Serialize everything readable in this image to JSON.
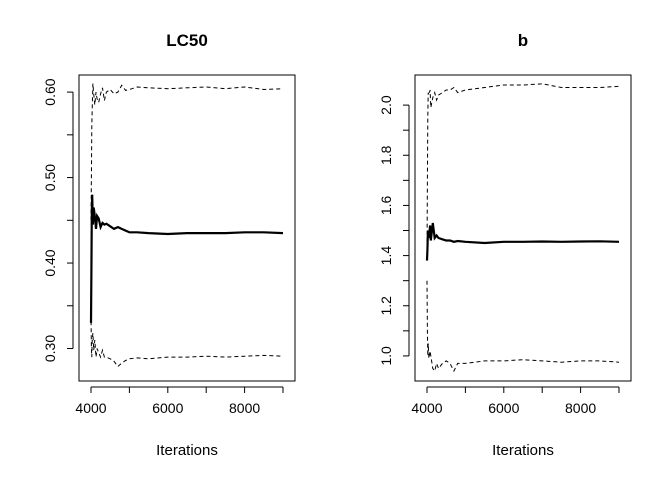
{
  "chart_data": [
    {
      "type": "line",
      "title": "LC50",
      "xlabel": "Iterations",
      "ylabel": "",
      "xlim": [
        4000,
        9000
      ],
      "ylim": [
        0.262,
        0.62
      ],
      "xticks": [
        4000,
        6000,
        8000
      ],
      "yticks": [
        0.3,
        0.4,
        0.5,
        0.6
      ],
      "ytick_labels": [
        "0.30",
        "0.40",
        "0.50",
        "0.60"
      ],
      "grid": false,
      "legend": "none",
      "series": [
        {
          "style": "dashed",
          "x": [
            4000,
            4010,
            4020,
            4030,
            4050,
            4070,
            4100,
            4130,
            4160,
            4200,
            4250,
            4300,
            4350,
            4400,
            4500,
            4600,
            4700,
            4800,
            4900,
            5000,
            5200,
            5500,
            6000,
            6500,
            7000,
            7500,
            8000,
            8500,
            9000
          ],
          "values": [
            0.45,
            0.5,
            0.56,
            0.58,
            0.61,
            0.598,
            0.585,
            0.6,
            0.592,
            0.588,
            0.598,
            0.605,
            0.59,
            0.6,
            0.603,
            0.598,
            0.6,
            0.608,
            0.602,
            0.603,
            0.606,
            0.605,
            0.604,
            0.605,
            0.606,
            0.604,
            0.606,
            0.603,
            0.604
          ]
        },
        {
          "style": "solid",
          "x": [
            4000,
            4010,
            4020,
            4030,
            4050,
            4070,
            4100,
            4130,
            4160,
            4200,
            4250,
            4300,
            4350,
            4400,
            4500,
            4600,
            4700,
            4800,
            4900,
            5000,
            5200,
            5500,
            6000,
            6500,
            7000,
            7500,
            8000,
            8500,
            9000
          ],
          "values": [
            0.33,
            0.39,
            0.46,
            0.48,
            0.445,
            0.465,
            0.455,
            0.44,
            0.455,
            0.452,
            0.442,
            0.447,
            0.445,
            0.446,
            0.443,
            0.44,
            0.442,
            0.44,
            0.438,
            0.436,
            0.436,
            0.435,
            0.434,
            0.435,
            0.435,
            0.435,
            0.436,
            0.436,
            0.435
          ]
        },
        {
          "style": "dashed",
          "x": [
            4000,
            4010,
            4020,
            4030,
            4050,
            4070,
            4100,
            4130,
            4160,
            4200,
            4250,
            4300,
            4350,
            4400,
            4500,
            4600,
            4700,
            4800,
            4900,
            5000,
            5200,
            5500,
            6000,
            6500,
            7000,
            7500,
            8000,
            8500,
            9000
          ],
          "values": [
            0.34,
            0.3,
            0.29,
            0.31,
            0.318,
            0.298,
            0.31,
            0.29,
            0.3,
            0.295,
            0.29,
            0.298,
            0.29,
            0.29,
            0.288,
            0.285,
            0.279,
            0.283,
            0.286,
            0.288,
            0.289,
            0.288,
            0.29,
            0.29,
            0.291,
            0.29,
            0.291,
            0.292,
            0.291
          ]
        }
      ]
    },
    {
      "type": "line",
      "title": "b",
      "xlabel": "Iterations",
      "ylabel": "",
      "xlim": [
        4000,
        9000
      ],
      "ylim": [
        0.9,
        2.12
      ],
      "xticks": [
        4000,
        6000,
        8000
      ],
      "yticks": [
        1.0,
        1.2,
        1.4,
        1.6,
        1.8,
        2.0
      ],
      "ytick_labels": [
        "1.0",
        "1.2",
        "1.4",
        "1.6",
        "1.8",
        "2.0"
      ],
      "grid": false,
      "legend": "none",
      "series": [
        {
          "style": "dashed",
          "x": [
            4000,
            4010,
            4020,
            4030,
            4050,
            4080,
            4100,
            4150,
            4200,
            4250,
            4300,
            4400,
            4500,
            4600,
            4700,
            4800,
            5000,
            5500,
            6000,
            6500,
            7000,
            7500,
            8000,
            8500,
            9000
          ],
          "values": [
            1.4,
            1.7,
            1.95,
            2.05,
            2.04,
            2.06,
            1.99,
            2.03,
            2.05,
            2.02,
            2.04,
            2.05,
            2.06,
            2.06,
            2.07,
            2.05,
            2.06,
            2.07,
            2.08,
            2.08,
            2.085,
            2.07,
            2.07,
            2.07,
            2.075
          ]
        },
        {
          "style": "solid",
          "x": [
            4000,
            4010,
            4020,
            4030,
            4050,
            4080,
            4100,
            4150,
            4200,
            4250,
            4300,
            4400,
            4500,
            4600,
            4700,
            4800,
            5000,
            5500,
            6000,
            6500,
            7000,
            7500,
            8000,
            8500,
            9000
          ],
          "values": [
            1.38,
            1.42,
            1.48,
            1.5,
            1.47,
            1.52,
            1.46,
            1.53,
            1.47,
            1.48,
            1.47,
            1.465,
            1.46,
            1.46,
            1.455,
            1.458,
            1.455,
            1.45,
            1.455,
            1.455,
            1.456,
            1.455,
            1.456,
            1.457,
            1.455
          ]
        },
        {
          "style": "dashed",
          "x": [
            4000,
            4010,
            4020,
            4030,
            4050,
            4080,
            4100,
            4150,
            4200,
            4250,
            4300,
            4400,
            4500,
            4600,
            4700,
            4800,
            5000,
            5500,
            6000,
            6500,
            7000,
            7500,
            8000,
            8500,
            9000
          ],
          "values": [
            1.3,
            1.1,
            1.0,
            1.05,
            0.99,
            1.02,
            1.0,
            0.95,
            0.94,
            0.97,
            0.95,
            0.97,
            0.98,
            0.97,
            0.94,
            0.97,
            0.97,
            0.98,
            0.98,
            0.985,
            0.98,
            0.975,
            0.98,
            0.98,
            0.975
          ]
        }
      ]
    }
  ]
}
